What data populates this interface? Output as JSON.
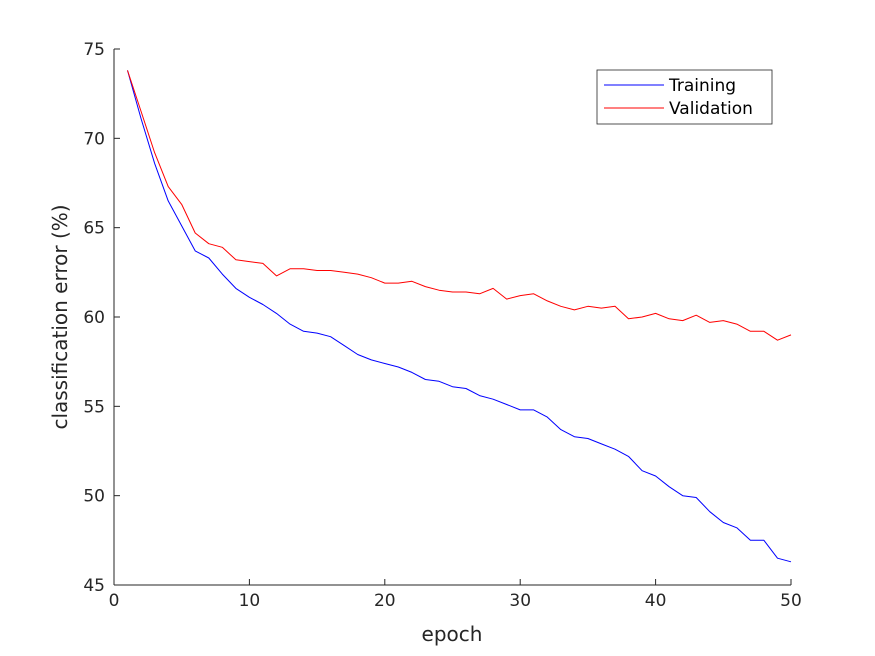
{
  "chart_data": {
    "type": "line",
    "title": "",
    "xlabel": "epoch",
    "ylabel": "classification error (%)",
    "xlim": [
      0,
      50
    ],
    "ylim": [
      45,
      75
    ],
    "xticks": [
      0,
      10,
      20,
      30,
      40,
      50
    ],
    "yticks": [
      45,
      50,
      55,
      60,
      65,
      70,
      75
    ],
    "grid": false,
    "legend_position": "top-right",
    "x": [
      1,
      2,
      3,
      4,
      5,
      6,
      7,
      8,
      9,
      10,
      11,
      12,
      13,
      14,
      15,
      16,
      17,
      18,
      19,
      20,
      21,
      22,
      23,
      24,
      25,
      26,
      27,
      28,
      29,
      30,
      31,
      32,
      33,
      34,
      35,
      36,
      37,
      38,
      39,
      40,
      41,
      42,
      43,
      44,
      45,
      46,
      47,
      48,
      49,
      50
    ],
    "series": [
      {
        "name": "Training",
        "color": "#0000ff",
        "values": [
          73.8,
          71.1,
          68.6,
          66.5,
          65.1,
          63.7,
          63.3,
          62.4,
          61.6,
          61.1,
          60.7,
          60.2,
          59.6,
          59.2,
          59.1,
          58.9,
          58.4,
          57.9,
          57.6,
          57.4,
          57.2,
          56.9,
          56.5,
          56.4,
          56.1,
          56.0,
          55.6,
          55.4,
          55.1,
          54.8,
          54.8,
          54.4,
          53.7,
          53.3,
          53.2,
          52.9,
          52.6,
          52.2,
          51.4,
          51.1,
          50.5,
          50.0,
          49.9,
          49.1,
          48.5,
          48.2,
          47.5,
          47.5,
          46.5,
          46.3
        ]
      },
      {
        "name": "Validation",
        "color": "#ff0000",
        "values": [
          73.8,
          71.5,
          69.2,
          67.3,
          66.3,
          64.7,
          64.1,
          63.9,
          63.2,
          63.1,
          63.0,
          62.3,
          62.7,
          62.7,
          62.6,
          62.6,
          62.5,
          62.4,
          62.2,
          61.9,
          61.9,
          62.0,
          61.7,
          61.5,
          61.4,
          61.4,
          61.3,
          61.6,
          61.0,
          61.2,
          61.3,
          60.9,
          60.6,
          60.4,
          60.6,
          60.5,
          60.6,
          59.9,
          60.0,
          60.2,
          59.9,
          59.8,
          60.1,
          59.7,
          59.8,
          59.6,
          59.2,
          59.2,
          58.7,
          59.0
        ]
      }
    ]
  }
}
